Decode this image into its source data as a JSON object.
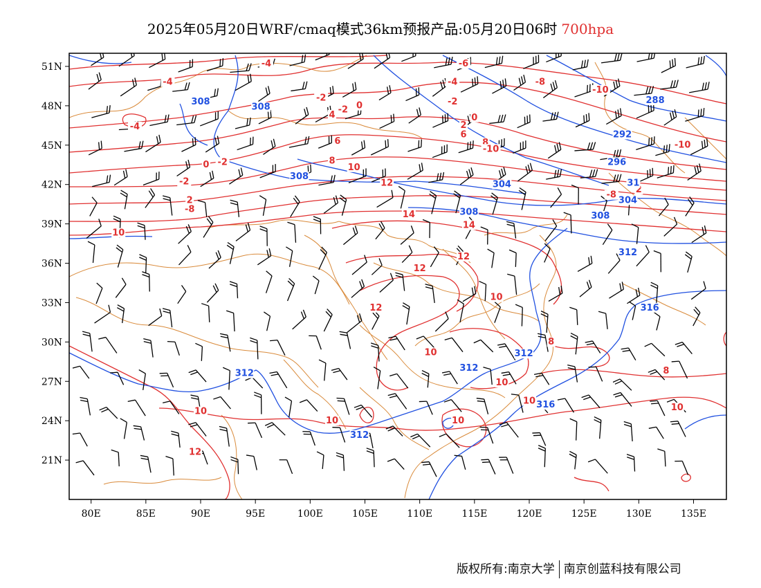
{
  "header": {
    "title": "2025年05月20日WRF/cmaq模式36km预报产品:05月20日06时",
    "level": "700hpa"
  },
  "axes": {
    "x_ticks": [
      "80E",
      "85E",
      "90E",
      "95E",
      "100E",
      "105E",
      "110E",
      "115E",
      "120E",
      "125E",
      "130E",
      "135E"
    ],
    "y_ticks": [
      "51N",
      "48N",
      "45N",
      "42N",
      "39N",
      "36N",
      "33N",
      "30N",
      "27N",
      "24N",
      "21N"
    ],
    "lon_range": [
      78,
      138
    ],
    "lat_range": [
      18,
      52
    ]
  },
  "colors": {
    "temperature": "#e03030",
    "geopotential": "#2050e0",
    "boundary": "#d98a3a",
    "wind": "#000000"
  },
  "temperature_labels": [
    {
      "text": "-6",
      "lon": 114,
      "lat": 51
    },
    {
      "text": "-4",
      "lon": 96,
      "lat": 51
    },
    {
      "text": "-4",
      "lon": 113,
      "lat": 49.6
    },
    {
      "text": "-4",
      "lon": 87,
      "lat": 49.6
    },
    {
      "text": "-8",
      "lon": 121,
      "lat": 49.6
    },
    {
      "text": "-10",
      "lon": 126.5,
      "lat": 49
    },
    {
      "text": "-2",
      "lon": 101,
      "lat": 48.4
    },
    {
      "text": "-2",
      "lon": 113,
      "lat": 48.1
    },
    {
      "text": "-2",
      "lon": 103,
      "lat": 47.5
    },
    {
      "text": "0",
      "lon": 104.5,
      "lat": 47.8
    },
    {
      "text": "-4",
      "lon": 84,
      "lat": 46.2
    },
    {
      "text": "4",
      "lon": 102,
      "lat": 47.1
    },
    {
      "text": "0",
      "lon": 115,
      "lat": 46.9
    },
    {
      "text": "2",
      "lon": 114,
      "lat": 46.3
    },
    {
      "text": "6",
      "lon": 114,
      "lat": 45.6
    },
    {
      "text": "8",
      "lon": 116,
      "lat": 45
    },
    {
      "text": "-10",
      "lon": 116.5,
      "lat": 44.5
    },
    {
      "text": "6",
      "lon": 102.5,
      "lat": 45.1
    },
    {
      "text": "-10",
      "lon": 134,
      "lat": 44.8
    },
    {
      "text": "8",
      "lon": 102,
      "lat": 43.6
    },
    {
      "text": "10",
      "lon": 104,
      "lat": 43.1
    },
    {
      "text": "-2",
      "lon": 92,
      "lat": 43.5
    },
    {
      "text": "0",
      "lon": 90.5,
      "lat": 43.3
    },
    {
      "text": "-2",
      "lon": 88.5,
      "lat": 42
    },
    {
      "text": "12",
      "lon": 107,
      "lat": 41.9
    },
    {
      "text": "2",
      "lon": 129.5,
      "lat": 41.8
    },
    {
      "text": "2",
      "lon": 130,
      "lat": 41.4
    },
    {
      "text": "-8",
      "lon": 127.5,
      "lat": 41
    },
    {
      "text": "2",
      "lon": 89,
      "lat": 40.6
    },
    {
      "text": "-8",
      "lon": 89,
      "lat": 39.9
    },
    {
      "text": "14",
      "lon": 109,
      "lat": 39.5
    },
    {
      "text": "14",
      "lon": 114.5,
      "lat": 38.7
    },
    {
      "text": "10",
      "lon": 82.5,
      "lat": 38.1
    },
    {
      "text": "12",
      "lon": 114,
      "lat": 36.3
    },
    {
      "text": "12",
      "lon": 110,
      "lat": 35.4
    },
    {
      "text": "10",
      "lon": 117,
      "lat": 33.2
    },
    {
      "text": "12",
      "lon": 106,
      "lat": 32.4
    },
    {
      "text": "8",
      "lon": 122,
      "lat": 29.8
    },
    {
      "text": "10",
      "lon": 111,
      "lat": 29
    },
    {
      "text": "8",
      "lon": 132.5,
      "lat": 27.6
    },
    {
      "text": "10",
      "lon": 117.5,
      "lat": 26.7
    },
    {
      "text": "10",
      "lon": 120,
      "lat": 25.3
    },
    {
      "text": "10",
      "lon": 133.5,
      "lat": 24.8
    },
    {
      "text": "10",
      "lon": 90,
      "lat": 24.5
    },
    {
      "text": "10",
      "lon": 102,
      "lat": 23.8
    },
    {
      "text": "10",
      "lon": 113.5,
      "lat": 23.8
    },
    {
      "text": "12",
      "lon": 89.5,
      "lat": 21.4
    }
  ],
  "geopotential_labels": [
    {
      "text": "308",
      "lon": 90,
      "lat": 48.1
    },
    {
      "text": "308",
      "lon": 95.5,
      "lat": 47.7
    },
    {
      "text": "288",
      "lon": 131.5,
      "lat": 48.2
    },
    {
      "text": "292",
      "lon": 128.5,
      "lat": 45.6
    },
    {
      "text": "296",
      "lon": 128,
      "lat": 43.5
    },
    {
      "text": "308",
      "lon": 99,
      "lat": 42.4
    },
    {
      "text": "304",
      "lon": 117.5,
      "lat": 41.8
    },
    {
      "text": "31",
      "lon": 129.5,
      "lat": 41.9
    },
    {
      "text": "304",
      "lon": 129,
      "lat": 40.6
    },
    {
      "text": "308",
      "lon": 114.5,
      "lat": 39.7
    },
    {
      "text": "308",
      "lon": 126.5,
      "lat": 39.4
    },
    {
      "text": "312",
      "lon": 129,
      "lat": 36.6
    },
    {
      "text": "316",
      "lon": 131,
      "lat": 32.4
    },
    {
      "text": "312",
      "lon": 119.5,
      "lat": 28.9
    },
    {
      "text": "312",
      "lon": 94,
      "lat": 27.4
    },
    {
      "text": "312",
      "lon": 114.5,
      "lat": 27.8
    },
    {
      "text": "316",
      "lon": 121.5,
      "lat": 25
    },
    {
      "text": "312",
      "lon": 104.5,
      "lat": 22.7
    }
  ],
  "footer": {
    "copyright": "版权所有:南京大学",
    "company": "南京创蓝科技有限公司"
  }
}
